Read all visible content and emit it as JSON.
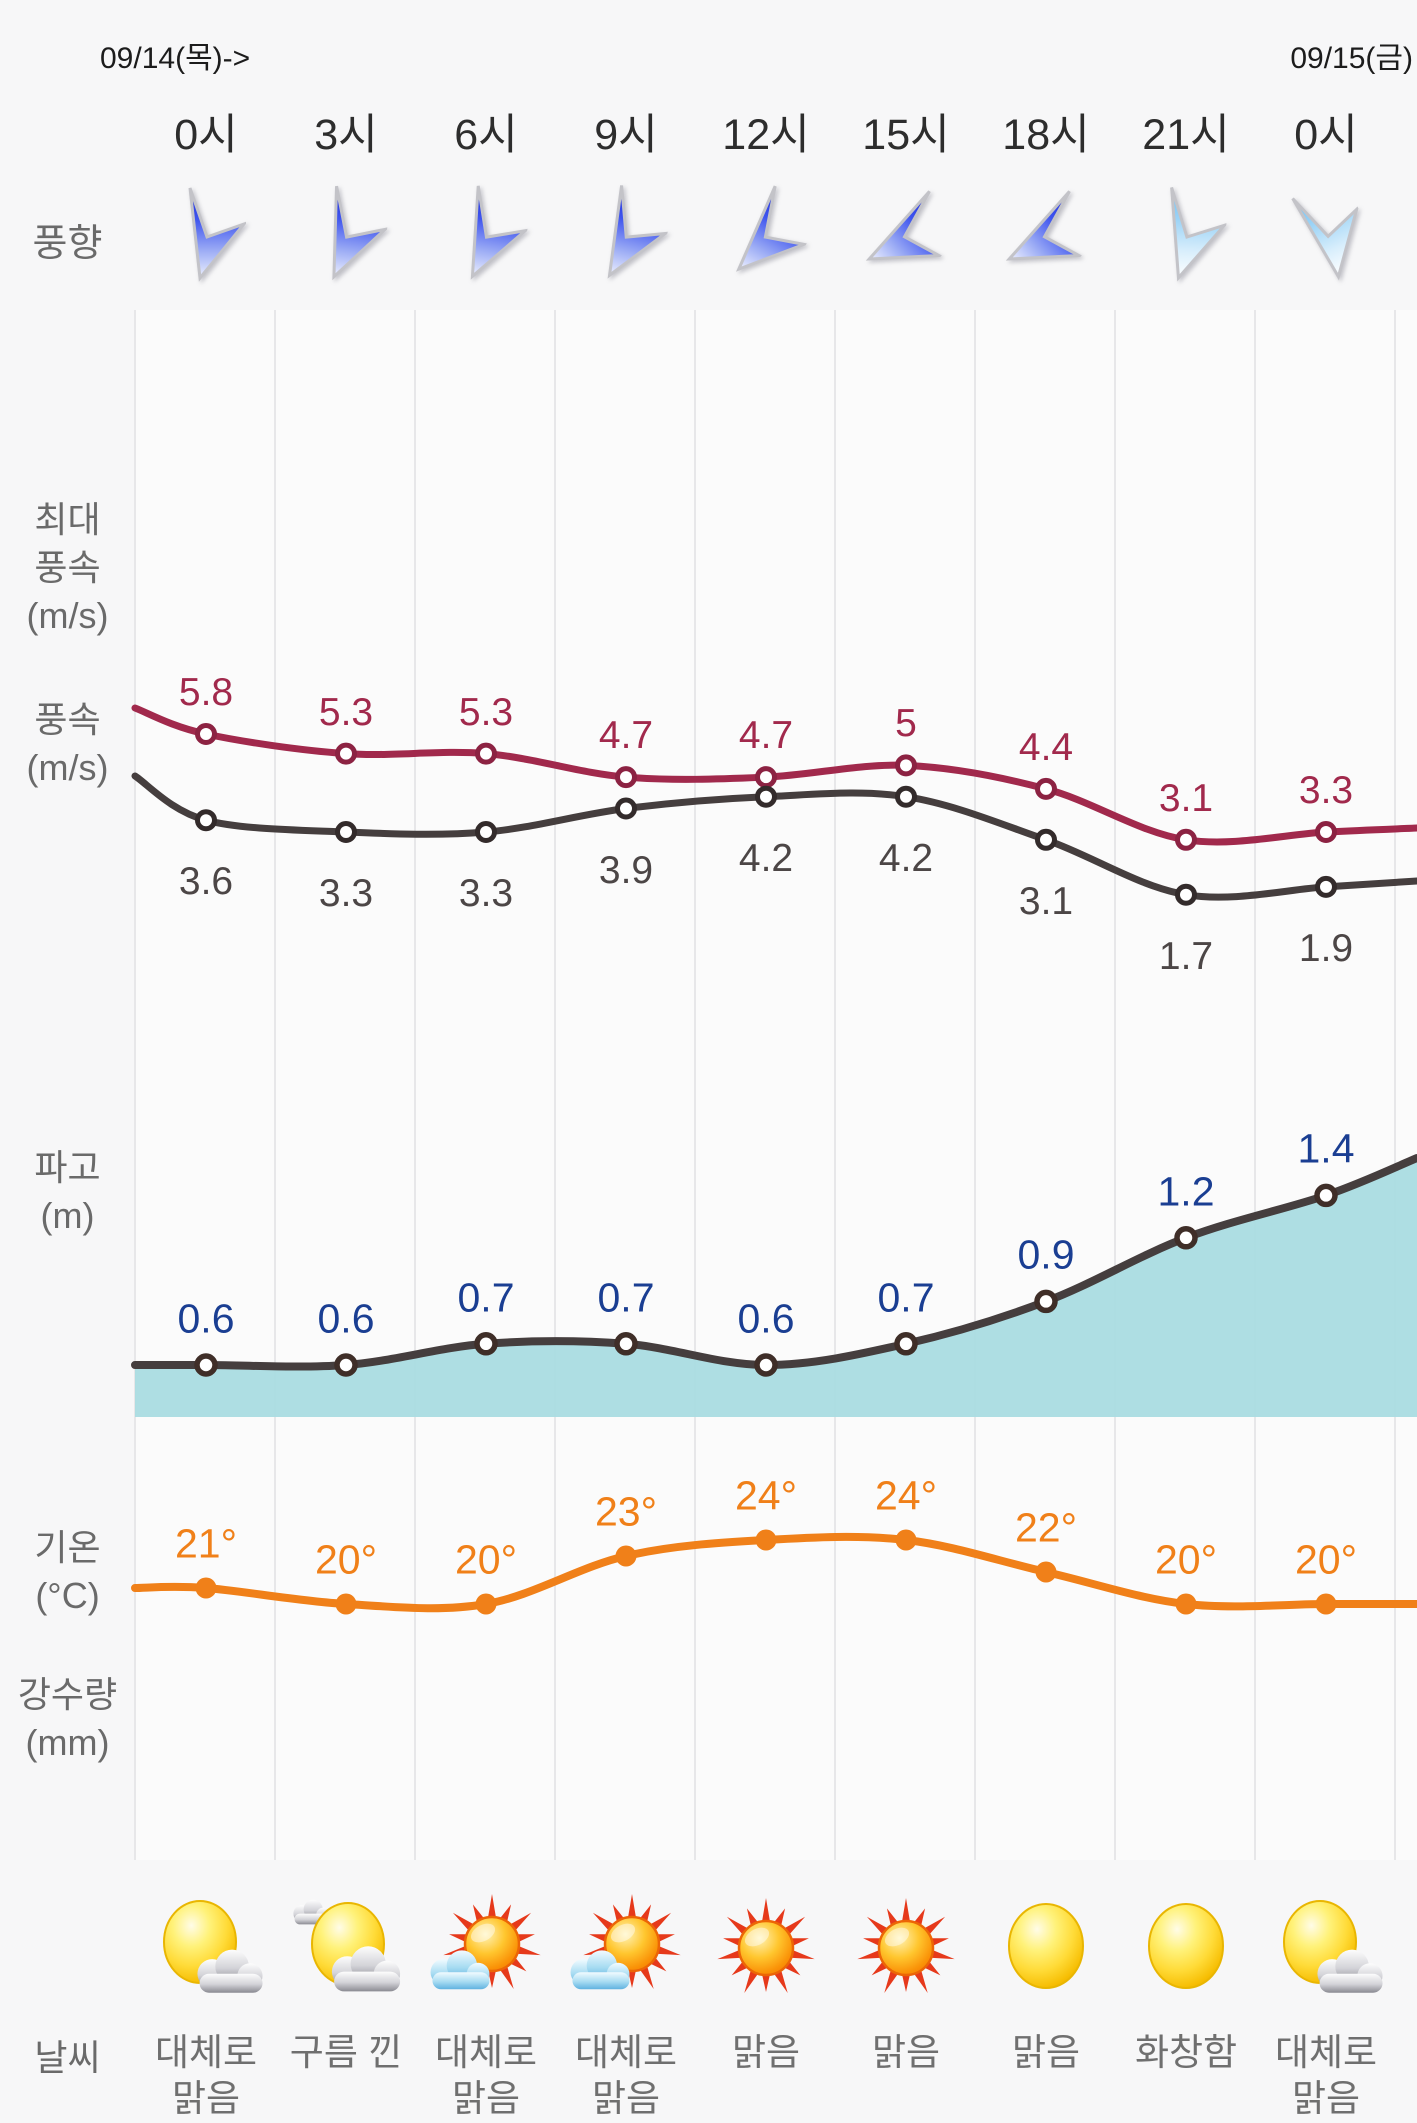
{
  "header": {
    "date_start": "09/14(목)->",
    "date_end": "09/15(금)"
  },
  "columns": [
    "0시",
    "3시",
    "6시",
    "9시",
    "12시",
    "15시",
    "18시",
    "21시",
    "0시"
  ],
  "row_labels": {
    "wind_direction": "풍향",
    "max_wind_speed": "최대\n풍속\n(m/s)",
    "wind_speed": "풍속\n(m/s)",
    "wave_height": "파고\n(m)",
    "temperature": "기온\n(°C)",
    "precipitation": "강수량\n(mm)",
    "weather": "날씨"
  },
  "wind_directions": [
    {
      "angle": 0,
      "tone": "dark"
    },
    {
      "angle": 8,
      "tone": "dark"
    },
    {
      "angle": 10,
      "tone": "dark"
    },
    {
      "angle": 14,
      "tone": "dark"
    },
    {
      "angle": 30,
      "tone": "dark"
    },
    {
      "angle": 48,
      "tone": "dark"
    },
    {
      "angle": 48,
      "tone": "dark"
    },
    {
      "angle": 2,
      "tone": "light"
    },
    {
      "angle": -24,
      "tone": "light"
    }
  ],
  "chart_data": [
    {
      "type": "line",
      "title": "풍속 / 최대 풍속 (m/s)",
      "categories": [
        "0시",
        "3시",
        "6시",
        "9시",
        "12시",
        "15시",
        "18시",
        "21시",
        "0시"
      ],
      "series": [
        {
          "name": "최대 풍속(m/s)",
          "color": "#a1294c",
          "values": [
            5.8,
            5.3,
            5.3,
            4.7,
            4.7,
            5,
            4.4,
            3.1,
            3.3
          ]
        },
        {
          "name": "풍속(m/s)",
          "color": "#453e3e",
          "values": [
            3.6,
            3.3,
            3.3,
            3.9,
            4.2,
            4.2,
            3.1,
            1.7,
            1.9
          ]
        }
      ],
      "legend": "off",
      "grid": "vertical-only"
    },
    {
      "type": "area",
      "title": "파고 (m)",
      "categories": [
        "0시",
        "3시",
        "6시",
        "9시",
        "12시",
        "15시",
        "18시",
        "21시",
        "0시"
      ],
      "series": [
        {
          "name": "파고(m)",
          "color": "#453e3e",
          "fill": "#a8dce1",
          "label_color": "#1a3e92",
          "values": [
            0.6,
            0.6,
            0.7,
            0.7,
            0.6,
            0.7,
            0.9,
            1.2,
            1.4
          ]
        }
      ],
      "legend": "off",
      "grid": "vertical-only"
    },
    {
      "type": "line",
      "title": "기온 (°C)",
      "categories": [
        "0시",
        "3시",
        "6시",
        "9시",
        "12시",
        "15시",
        "18시",
        "21시",
        "0시"
      ],
      "series": [
        {
          "name": "기온(°C)",
          "color": "#f08019",
          "suffix": "°",
          "values": [
            21,
            20,
            20,
            23,
            24,
            24,
            22,
            20,
            20
          ]
        }
      ],
      "legend": "off",
      "grid": "vertical-only"
    },
    {
      "type": "table",
      "title": "강수량 (mm)",
      "categories": [
        "0시",
        "3시",
        "6시",
        "9시",
        "12시",
        "15시",
        "18시",
        "21시",
        "0시"
      ],
      "values": [
        "",
        "",
        "",
        "",
        "",
        "",
        "",
        "",
        ""
      ]
    }
  ],
  "weather": [
    {
      "icon": "sun-cloud",
      "label": "대체로\n맑음"
    },
    {
      "icon": "sun-two-clouds",
      "label": "구름 낀"
    },
    {
      "icon": "sun-rays-cloud",
      "label": "대체로\n맑음"
    },
    {
      "icon": "sun-rays-cloud",
      "label": "대체로\n맑음"
    },
    {
      "icon": "sun-rays",
      "label": "맑음"
    },
    {
      "icon": "sun-rays",
      "label": "맑음"
    },
    {
      "icon": "sun",
      "label": "맑음"
    },
    {
      "icon": "sun",
      "label": "화창함"
    },
    {
      "icon": "sun-cloud",
      "label": "대체로\n맑음"
    }
  ],
  "colors": {
    "max_wind_line": "#a1294c",
    "wind_line": "#453e3e",
    "wave_line": "#453e3e",
    "wave_fill": "#a8dce1",
    "wave_label": "#1a3e92",
    "temp_line": "#f08019",
    "gridline": "#e7e7e9",
    "background": "#f7f7f8"
  }
}
